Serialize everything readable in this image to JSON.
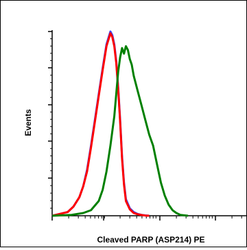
{
  "chart_data": {
    "type": "line",
    "title": "",
    "xlabel": "Cleaved PARP (ASP214) PE",
    "ylabel": "Events",
    "xlim": [
      0,
      100
    ],
    "ylim": [
      0,
      100
    ],
    "x_scale": "log",
    "grid": false,
    "series": [
      {
        "color": "#4040f0",
        "x": [
          0,
          4,
          8,
          11,
          14,
          16,
          18,
          20,
          22,
          24,
          26,
          28,
          30,
          31,
          32,
          33,
          34,
          35,
          36,
          37,
          38,
          40,
          42,
          44,
          46,
          48,
          50
        ],
        "y": [
          0,
          1,
          2,
          5,
          10,
          16,
          25,
          38,
          52,
          66,
          80,
          93,
          100,
          98,
          93,
          84,
          70,
          52,
          32,
          18,
          9,
          4,
          2,
          1,
          0.5,
          0.2,
          0
        ]
      },
      {
        "color": "#ff0000",
        "x": [
          0,
          4,
          8,
          11,
          14,
          16,
          18,
          20,
          22,
          24,
          26,
          28,
          30,
          31,
          32,
          33,
          34,
          35,
          36,
          37,
          38,
          40,
          42,
          44,
          46,
          48,
          50
        ],
        "y": [
          0,
          1,
          2,
          5,
          10,
          16,
          24,
          37,
          51,
          65,
          79,
          92,
          99,
          97,
          92,
          83,
          69,
          51,
          31,
          17,
          8,
          3.5,
          1.5,
          0.8,
          0.4,
          0.1,
          0
        ]
      },
      {
        "color": "#008000",
        "x": [
          0,
          10,
          16,
          20,
          24,
          26,
          28,
          30,
          32,
          33,
          34,
          35,
          36,
          37,
          38,
          39,
          40,
          41,
          42,
          44,
          46,
          48,
          50,
          52,
          54,
          56,
          58,
          60,
          62,
          64,
          66,
          70
        ],
        "y": [
          0,
          0.5,
          1.5,
          3,
          8,
          14,
          24,
          38,
          54,
          66,
          78,
          86,
          91,
          88,
          92,
          90,
          85,
          82,
          76,
          68,
          60,
          52,
          44,
          38,
          28,
          18,
          11,
          6,
          3,
          1.5,
          0.5,
          0
        ]
      }
    ]
  }
}
